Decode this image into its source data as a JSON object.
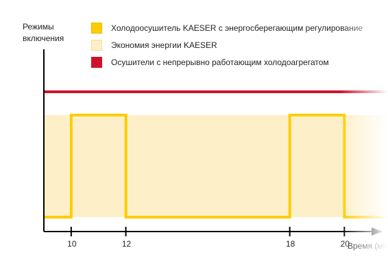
{
  "chart_data": {
    "type": "line",
    "ylabel": "Режимы\nвключения",
    "xlabel": "Время (ми",
    "xlim": [
      9,
      22.4
    ],
    "x_ticks": [
      10,
      12,
      18,
      20
    ],
    "legend": [
      {
        "label": "Холодоосушитель KAESER с энергосберегающим регулирование",
        "color": "#ffcc00",
        "border": "#e8b800"
      },
      {
        "label": "Экономия энергии KAESER",
        "color": "#fdf0c8",
        "border": "#f3dc9a"
      },
      {
        "label": "Осушители с непрерывно работающим холодоагрегатом",
        "color": "#d0112b",
        "border": "#d0112b"
      }
    ],
    "series": [
      {
        "name": "Холодоосушитель KAESER с энергосберегающим регулирование",
        "color": "#ffcc00",
        "step": true,
        "x": [
          9,
          10,
          10,
          12,
          12,
          18,
          18,
          20,
          20,
          22
        ],
        "y": [
          0,
          0,
          1,
          1,
          0,
          0,
          1,
          1,
          0,
          0
        ]
      },
      {
        "name": "Осушители с непрерывно работающим холодоагрегатом",
        "color": "#d0112b",
        "x": [
          9,
          22.4
        ],
        "y": [
          1.2,
          1.2
        ]
      }
    ],
    "savings_area": {
      "name": "Экономия энергии KAESER",
      "color": "#fdf0c8",
      "y_top": 1
    },
    "ylim": [
      0,
      1.2
    ],
    "legend_position": "top"
  }
}
